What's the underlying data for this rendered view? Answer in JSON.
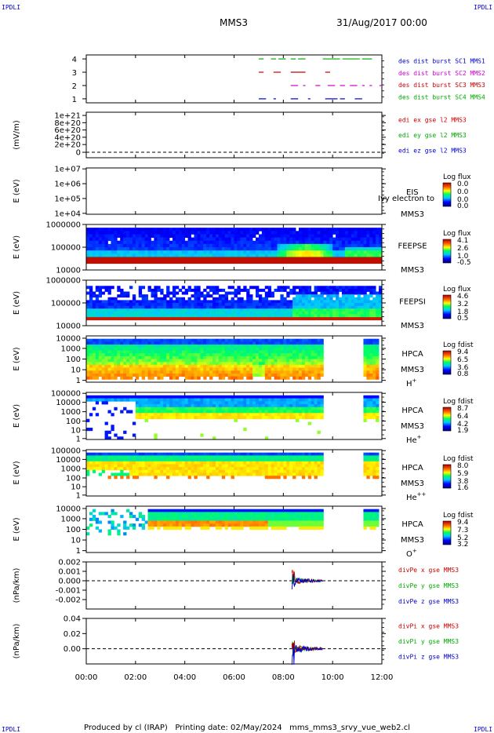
{
  "header": {
    "corner_label": "IPDLI",
    "spacecraft": "MMS3",
    "date_time": "31/Aug/2017 00:00"
  },
  "footer": {
    "text": "Produced by cl (IRAP)   Printing date: 02/May/2024   mms_mms3_srvy_vue_web2.cl"
  },
  "chart_data": [
    {
      "type": "line",
      "panel": "burst-availability",
      "yticks": [
        "1",
        "2",
        "3",
        "4"
      ],
      "legend": [
        {
          "text": "des dist burst SC1 MMS1",
          "color": "#0000cc"
        },
        {
          "text": "des dist burst SC2 MMS2",
          "color": "#cc00cc"
        },
        {
          "text": "des dist burst SC3 MMS3",
          "color": "#cc0000"
        },
        {
          "text": "des dist burst SC4 MMS4",
          "color": "#00aa00"
        }
      ],
      "series": [
        {
          "level": 4,
          "color": "#00aa00",
          "segments": [
            [
              7.0,
              7.2
            ],
            [
              7.5,
              7.7
            ],
            [
              7.8,
              8.1
            ],
            [
              8.3,
              8.5
            ],
            [
              8.6,
              8.9
            ],
            [
              9.6,
              10.3
            ],
            [
              10.4,
              11.1
            ],
            [
              11.2,
              11.6
            ]
          ]
        },
        {
          "level": 3,
          "color": "#cc0000",
          "segments": [
            [
              7.0,
              7.2
            ],
            [
              7.6,
              7.9
            ],
            [
              8.3,
              8.9
            ],
            [
              9.7,
              9.9
            ]
          ]
        },
        {
          "level": 2,
          "color": "#cc00cc",
          "segments": [
            [
              8.3,
              8.6
            ],
            [
              8.8,
              8.9
            ],
            [
              9.3,
              9.5
            ],
            [
              9.8,
              10.1
            ],
            [
              10.3,
              10.5
            ],
            [
              10.7,
              11.0
            ],
            [
              11.2,
              11.3
            ],
            [
              11.5,
              11.6
            ],
            [
              11.9,
              12.0
            ]
          ]
        },
        {
          "level": 1,
          "color": "#0000cc",
          "segments": [
            [
              7.0,
              7.3
            ],
            [
              7.6,
              7.7
            ],
            [
              8.3,
              8.6
            ],
            [
              9.0,
              9.1
            ],
            [
              9.7,
              10.2
            ],
            [
              10.3,
              10.5
            ],
            [
              10.9,
              11.2
            ]
          ]
        }
      ]
    },
    {
      "type": "line",
      "panel": "edi-efield",
      "ylabel": "(mV/m)",
      "yticks": [
        "1e+21",
        "8e+20",
        "6e+20",
        "4e+20",
        "2e+20",
        "0"
      ],
      "legend": [
        {
          "text": "edi ex gse l2 MMS3",
          "color": "#cc0000"
        },
        {
          "text": "edi ey gse l2 MMS3",
          "color": "#00aa00"
        },
        {
          "text": "edi ez gse l2 MMS3",
          "color": "#0000cc"
        }
      ]
    },
    {
      "type": "heatmap",
      "panel": "eis",
      "ylabel": "E (eV)",
      "yticks": [
        "1e+07",
        "1e+06",
        "1e+05",
        "1e+04"
      ],
      "instrument": [
        "EIS",
        "MMS3"
      ],
      "overlay_text": "Ivy electron to",
      "cbar_title": "Log flux",
      "cbar_ticks": [
        "0.0",
        "0.0",
        "0.0",
        "0.0"
      ]
    },
    {
      "type": "heatmap",
      "panel": "feeps-electron",
      "ylabel": "E (eV)",
      "yticks": [
        "1000000",
        "100000",
        "10000"
      ],
      "instrument": [
        "FEEPSE",
        "MMS3"
      ],
      "cbar_title": "Log flux",
      "cbar_ticks": [
        "4.1",
        "2.6",
        "1.0",
        "-0.5"
      ]
    },
    {
      "type": "heatmap",
      "panel": "feeps-ion",
      "ylabel": "E (eV)",
      "yticks": [
        "1000000",
        "100000",
        "10000"
      ],
      "instrument": [
        "FEEPSI",
        "MMS3"
      ],
      "cbar_title": "Log flux",
      "cbar_ticks": [
        "4.6",
        "3.2",
        "1.8",
        "0.5"
      ]
    },
    {
      "type": "heatmap",
      "panel": "hpca-h",
      "ylabel": "E (eV)",
      "yticks": [
        "10000",
        "1000",
        "100",
        "10",
        "1"
      ],
      "instrument": [
        "HPCA",
        "MMS3"
      ],
      "species": "H",
      "species_sup": "+",
      "cbar_title": "Log fdist",
      "cbar_ticks": [
        "9.4",
        "6.5",
        "3.6",
        "0.8"
      ]
    },
    {
      "type": "heatmap",
      "panel": "hpca-he",
      "ylabel": "E (eV)",
      "yticks": [
        "100000",
        "10000",
        "1000",
        "100",
        "10",
        "1"
      ],
      "instrument": [
        "HPCA",
        "MMS3"
      ],
      "species": "He",
      "species_sup": "+",
      "cbar_title": "Log fdist",
      "cbar_ticks": [
        "8.7",
        "6.4",
        "4.2",
        "1.9"
      ]
    },
    {
      "type": "heatmap",
      "panel": "hpca-he2",
      "ylabel": "E (eV)",
      "yticks": [
        "100000",
        "10000",
        "1000",
        "100",
        "10",
        "1"
      ],
      "instrument": [
        "HPCA",
        "MMS3"
      ],
      "species": "He",
      "species_sup": "++",
      "cbar_title": "Log fdist",
      "cbar_ticks": [
        "8.0",
        "5.9",
        "3.8",
        "1.6"
      ]
    },
    {
      "type": "heatmap",
      "panel": "hpca-o",
      "ylabel": "E (eV)",
      "yticks": [
        "10000",
        "1000",
        "100",
        "10",
        "1"
      ],
      "instrument": [
        "HPCA",
        "MMS3"
      ],
      "species": "O",
      "species_sup": "+",
      "cbar_title": "Log fdist",
      "cbar_ticks": [
        "9.4",
        "7.3",
        "5.2",
        "3.2"
      ]
    },
    {
      "type": "line",
      "panel": "divpe",
      "ylabel": "(nPa/km)",
      "yticks": [
        "0.002",
        "0.001",
        "0.000",
        "-0.001",
        "-0.002"
      ],
      "ylim": [
        -0.003,
        0.002
      ],
      "legend": [
        {
          "text": "divPe x gse MMS3",
          "color": "#cc0000"
        },
        {
          "text": "divPe y gse MMS3",
          "color": "#00aa00"
        },
        {
          "text": "divPe z gse MMS3",
          "color": "#0000cc"
        }
      ]
    },
    {
      "type": "line",
      "panel": "divpi",
      "ylabel": "(nPa/km)",
      "yticks": [
        "0.04",
        "0.02",
        "0.00"
      ],
      "ylim": [
        -0.02,
        0.04
      ],
      "legend": [
        {
          "text": "divPi x gse MMS3",
          "color": "#cc0000"
        },
        {
          "text": "divPi y gse MMS3",
          "color": "#00aa00"
        },
        {
          "text": "divPi z gse MMS3",
          "color": "#0000cc"
        }
      ]
    }
  ],
  "xaxis": {
    "ticks": [
      "00:00",
      "02:00",
      "04:00",
      "06:00",
      "08:00",
      "10:00",
      "12:00"
    ],
    "range_hours": [
      0,
      12
    ]
  }
}
